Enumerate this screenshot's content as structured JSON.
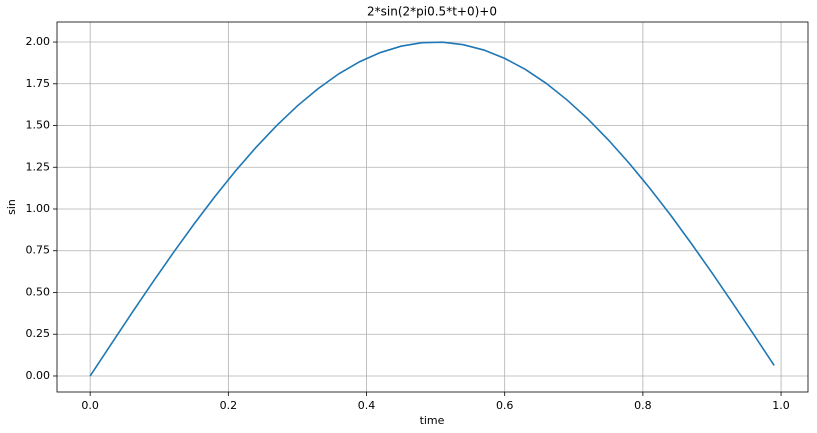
{
  "chart_data": {
    "type": "line",
    "title": "2*sin(2*pi0.5*t+0)+0",
    "x_label": "time",
    "y_label": "sin",
    "x": [
      0,
      0.03,
      0.06,
      0.09,
      0.12,
      0.15,
      0.18,
      0.21,
      0.24,
      0.27,
      0.3,
      0.33,
      0.36,
      0.39,
      0.42,
      0.45,
      0.48,
      0.51,
      0.54,
      0.57,
      0.6,
      0.63,
      0.66,
      0.69,
      0.72,
      0.75,
      0.78,
      0.81,
      0.84,
      0.87,
      0.9,
      0.93,
      0.96,
      0.99
    ],
    "values": [
      0,
      0.188,
      0.375,
      0.558,
      0.736,
      0.908,
      1.072,
      1.226,
      1.369,
      1.5,
      1.618,
      1.721,
      1.81,
      1.882,
      1.937,
      1.975,
      1.996,
      1.999,
      1.984,
      1.952,
      1.902,
      1.836,
      1.753,
      1.654,
      1.541,
      1.414,
      1.275,
      1.124,
      0.964,
      0.794,
      0.618,
      0.436,
      0.251,
      0.063
    ],
    "color": "#1f77b4",
    "xlim": [
      -0.048,
      1.039
    ],
    "xticks": [
      {
        "value": 0,
        "label": "0.0"
      },
      0.2,
      0.4,
      0.6,
      0.8,
      {
        "value": 1,
        "label": "1.0"
      }
    ],
    "ylim": [
      -0.096,
      2.12
    ],
    "yticks": [
      {
        "value": 0,
        "label": "0.00"
      },
      0.25,
      {
        "value": 0.5,
        "label": "0.50"
      },
      0.75,
      {
        "value": 1,
        "label": "1.00"
      },
      1.25,
      {
        "value": 1.5,
        "label": "1.50"
      },
      1.75,
      {
        "value": 2,
        "label": "2.00"
      }
    ],
    "grid": true
  }
}
